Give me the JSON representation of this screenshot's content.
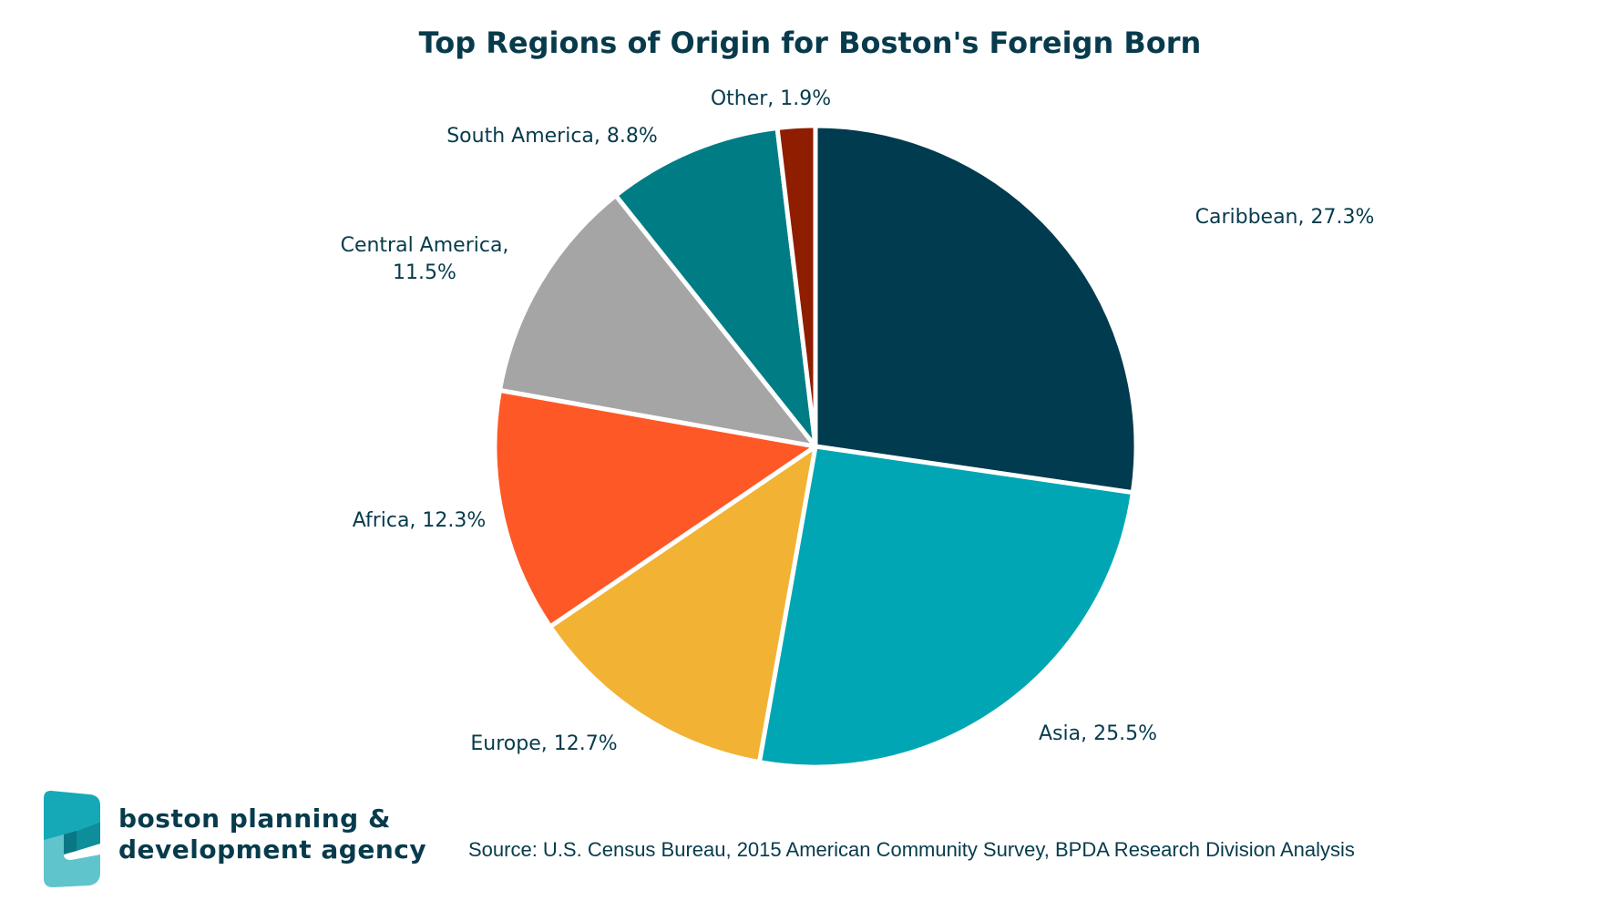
{
  "chart_data": {
    "type": "pie",
    "title": "Top Regions of Origin for Boston's Foreign Born",
    "categories": [
      "Caribbean",
      "Asia",
      "Europe",
      "Africa",
      "Central America",
      "South America",
      "Other"
    ],
    "values": [
      27.3,
      25.5,
      12.7,
      12.3,
      11.5,
      8.8,
      1.9
    ],
    "unit": "%",
    "labels": [
      [
        "Caribbean, 27.3%"
      ],
      [
        "Asia, 25.5%"
      ],
      [
        "Europe, 12.7%"
      ],
      [
        "Africa, 12.3%"
      ],
      [
        "Central America,",
        "11.5%"
      ],
      [
        "South America, 8.8%"
      ],
      [
        "Other, 1.9%"
      ]
    ],
    "colors": [
      "#003b4f",
      "#00a6b4",
      "#f2b233",
      "#fe5827",
      "#a5a5a5",
      "#007c84",
      "#8f1d00"
    ],
    "legend": "none",
    "start": "top",
    "direction": "clockwise"
  },
  "footer": {
    "logo_line1": "boston planning &",
    "logo_line2": "development agency",
    "source": "Source: U.S. Census Bureau, 2015 American Community Survey, BPDA Research Division Analysis"
  },
  "colors": {
    "text": "#073b4c",
    "logo_teal": "#15a9b8",
    "logo_light": "#5fc4cc"
  }
}
